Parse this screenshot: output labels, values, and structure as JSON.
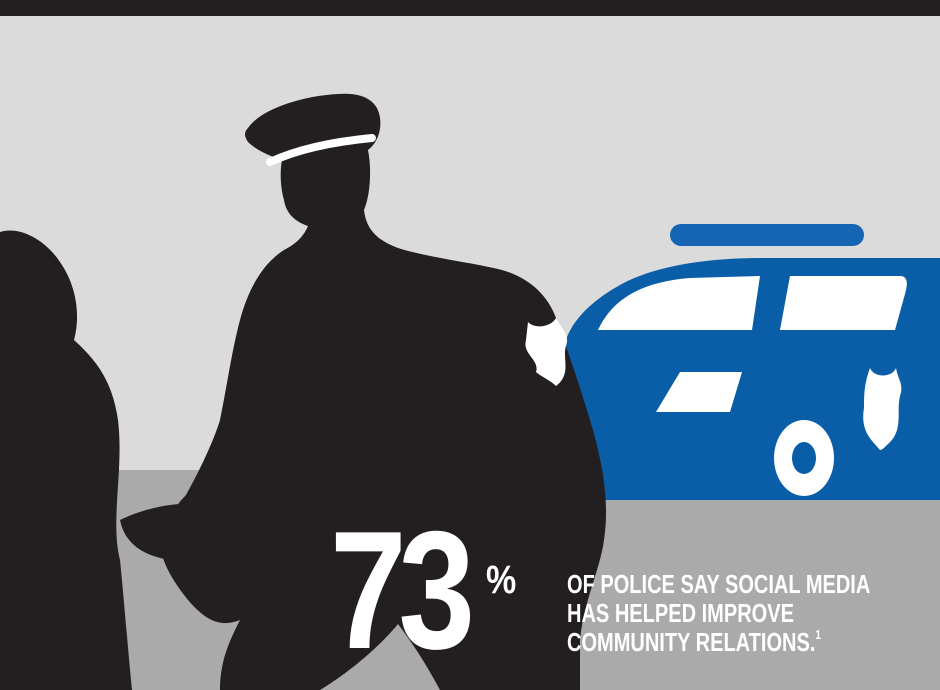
{
  "colors": {
    "background_light": "#dbdbdb",
    "ground": "#aaaaaa",
    "band": "#231f20",
    "silhouette": "#231f20",
    "car_blue": "#0a5ea8",
    "car_light": "#1565b4",
    "text": "#ffffff"
  },
  "stat": {
    "number": "73",
    "unit": "%",
    "caption": "OF POLICE SAY SOCIAL MEDIA HAS HELPED IMPROVE COMMUNITY RELATIONS.",
    "footnote": "1"
  },
  "icons": [
    "police-officer-silhouette",
    "person-silhouette",
    "police-car-icon",
    "police-badge-icon"
  ]
}
